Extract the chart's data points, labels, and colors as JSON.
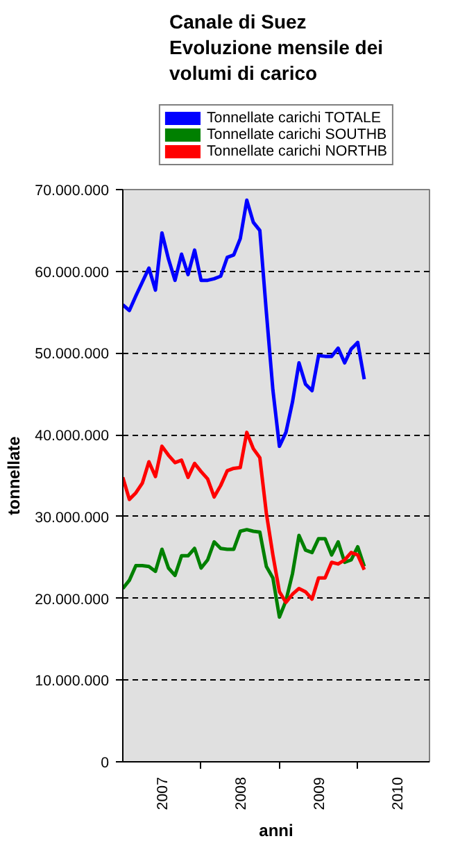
{
  "chart_data": {
    "type": "line",
    "title": "Canale di Suez\nEvoluzione mensile dei\nvolumi di carico",
    "xlabel": "anni",
    "ylabel": "tonnellate",
    "x": [
      "2007-01",
      "2007-02",
      "2007-03",
      "2007-04",
      "2007-05",
      "2007-06",
      "2007-07",
      "2007-08",
      "2007-09",
      "2007-10",
      "2007-11",
      "2007-12",
      "2008-01",
      "2008-02",
      "2008-03",
      "2008-04",
      "2008-05",
      "2008-06",
      "2008-07",
      "2008-08",
      "2008-09",
      "2008-10",
      "2008-11",
      "2008-12",
      "2009-01",
      "2009-02",
      "2009-03",
      "2009-04",
      "2009-05",
      "2009-06",
      "2009-07",
      "2009-08",
      "2009-09",
      "2009-10",
      "2009-11",
      "2009-12",
      "2010-01",
      "2010-02"
    ],
    "series": [
      {
        "name": "Tonnellate carichi TOTALE",
        "color": "#0000ff",
        "values": [
          55900000,
          55200000,
          57000000,
          58700000,
          60400000,
          57700000,
          64700000,
          61500000,
          58900000,
          62100000,
          59600000,
          62600000,
          58900000,
          58900000,
          59100000,
          59400000,
          61700000,
          62000000,
          64000000,
          68700000,
          66000000,
          65000000,
          55000000,
          45500000,
          38600000,
          40300000,
          44000000,
          48800000,
          46200000,
          45400000,
          49700000,
          49600000,
          49600000,
          50600000,
          48800000,
          50500000,
          51300000,
          46800000
        ]
      },
      {
        "name": "Tonnellate carichi SOUTHB",
        "color": "#008000",
        "values": [
          21200000,
          22200000,
          24000000,
          24000000,
          23900000,
          23300000,
          26000000,
          23700000,
          22800000,
          25200000,
          25200000,
          26100000,
          23700000,
          24700000,
          26900000,
          26100000,
          26000000,
          26000000,
          28200000,
          28400000,
          28200000,
          28100000,
          23900000,
          22500000,
          17700000,
          19700000,
          23000000,
          27700000,
          25900000,
          25600000,
          27300000,
          27300000,
          25300000,
          26900000,
          24400000,
          24700000,
          26300000,
          23900000
        ]
      },
      {
        "name": "Tonnellate carichi NORTHB",
        "color": "#ff0000",
        "values": [
          34800000,
          32100000,
          32900000,
          34100000,
          36700000,
          34900000,
          38600000,
          37500000,
          36600000,
          36900000,
          34800000,
          36500000,
          35500000,
          34600000,
          32400000,
          33800000,
          35600000,
          35900000,
          36000000,
          40300000,
          38300000,
          37200000,
          30400000,
          25300000,
          20800000,
          19500000,
          20500000,
          21200000,
          20800000,
          19900000,
          22500000,
          22500000,
          24400000,
          24200000,
          24700000,
          25600000,
          25300000,
          23500000
        ]
      }
    ],
    "xlim": [
      "2007-01",
      "2010-12"
    ],
    "xticks": [
      {
        "value": "2007-07",
        "label": "2007"
      },
      {
        "value": "2008-01",
        "label": null
      },
      {
        "value": "2008-07",
        "label": "2008"
      },
      {
        "value": "2009-01",
        "label": null
      },
      {
        "value": "2009-07",
        "label": "2009"
      },
      {
        "value": "2010-01",
        "label": null
      },
      {
        "value": "2010-07",
        "label": "2010"
      }
    ],
    "ylim": [
      0,
      70000000
    ],
    "yticks": [
      {
        "value": 0,
        "label": "0"
      },
      {
        "value": 10000000,
        "label": "10.000.000"
      },
      {
        "value": 20000000,
        "label": "20.000.000"
      },
      {
        "value": 30000000,
        "label": "30.000.000"
      },
      {
        "value": 40000000,
        "label": "40.000.000"
      },
      {
        "value": 50000000,
        "label": "50.000.000"
      },
      {
        "value": 60000000,
        "label": "60.000.000"
      },
      {
        "value": 70000000,
        "label": "70.000.000"
      }
    ],
    "grid": "y",
    "legend": "top",
    "line_style": "solid",
    "marker": "none"
  }
}
